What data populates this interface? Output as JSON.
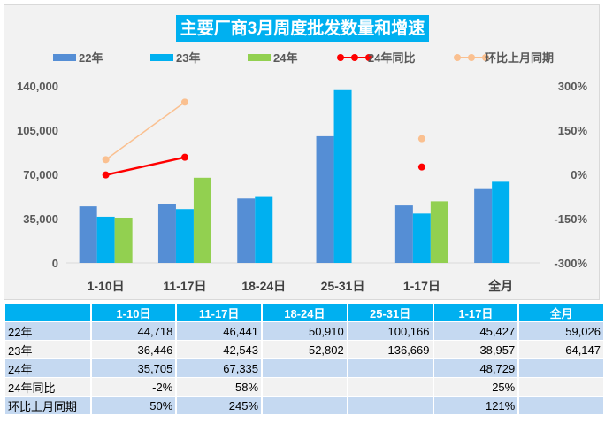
{
  "chart_data": {
    "type": "bar+line",
    "title": "主要厂商3月周度批发数量和增速",
    "categories": [
      "1-10日",
      "11-17日",
      "18-24日",
      "25-31日",
      "1-17日",
      "全月"
    ],
    "series": [
      {
        "name": "22年",
        "type": "bar",
        "axis": "left",
        "color": "#558ed5",
        "values": [
          44718,
          46441,
          50910,
          100166,
          45427,
          59026
        ]
      },
      {
        "name": "23年",
        "type": "bar",
        "axis": "left",
        "color": "#00b0f0",
        "values": [
          36446,
          42543,
          52802,
          136669,
          38957,
          64147
        ]
      },
      {
        "name": "24年",
        "type": "bar",
        "axis": "left",
        "color": "#92d050",
        "values": [
          35705,
          67335,
          null,
          null,
          48729,
          null
        ]
      },
      {
        "name": "24年同比",
        "type": "line",
        "axis": "right",
        "color": "#ff0000",
        "values": [
          -2,
          58,
          null,
          null,
          25,
          null
        ]
      },
      {
        "name": "环比上月同期",
        "type": "line",
        "axis": "right",
        "color": "#fac090",
        "values": [
          50,
          245,
          null,
          null,
          121,
          null
        ]
      }
    ],
    "left_axis": {
      "min": 0,
      "max": 140000,
      "ticks": [
        "0",
        "35,000",
        "70,000",
        "105,000",
        "140,000"
      ]
    },
    "right_axis": {
      "min": -300,
      "max": 300,
      "unit": "%",
      "ticks": [
        "-300%",
        "-150%",
        "0%",
        "150%",
        "300%"
      ]
    },
    "legend_position": "top",
    "grid": false
  },
  "table": {
    "header": [
      "",
      "1-10日",
      "11-17日",
      "18-24日",
      "25-31日",
      "1-17日",
      "全月"
    ],
    "rows": [
      [
        "22年",
        "44,718",
        "46,441",
        "50,910",
        "100,166",
        "45,427",
        "59,026"
      ],
      [
        "23年",
        "36,446",
        "42,543",
        "52,802",
        "136,669",
        "38,957",
        "64,147"
      ],
      [
        "24年",
        "35,705",
        "67,335",
        "",
        "",
        "48,729",
        ""
      ],
      [
        "24年同比",
        "-2%",
        "58%",
        "",
        "",
        "25%",
        ""
      ],
      [
        "环比上月同期",
        "50%",
        "245%",
        "",
        "",
        "121%",
        ""
      ]
    ]
  }
}
